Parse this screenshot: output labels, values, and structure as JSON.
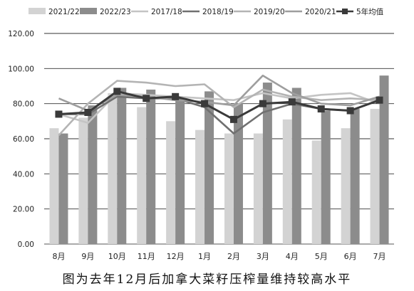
{
  "caption": "图为去年12月后加拿大菜籽压榨量维持较高水平",
  "chart_data": {
    "type": "bar",
    "categories": [
      "8月",
      "9月",
      "10月",
      "11月",
      "12月",
      "1月",
      "2月",
      "3月",
      "4月",
      "5月",
      "6月",
      "7月"
    ],
    "ylim": [
      0,
      120
    ],
    "yticks": [
      "0.00",
      "20.00",
      "40.00",
      "60.00",
      "80.00",
      "100.00",
      "120.00"
    ],
    "grid": true,
    "legend_position": "top",
    "series": [
      {
        "name": "2021/22",
        "kind": "bar",
        "color": "#d3d3d3",
        "values": [
          66,
          72,
          86,
          78,
          70,
          65,
          63,
          63,
          71,
          59,
          66,
          77
        ]
      },
      {
        "name": "2022/23",
        "kind": "bar",
        "color": "#8c8c8c",
        "values": [
          63,
          79,
          89,
          88,
          84,
          87,
          80,
          92,
          89,
          76,
          77,
          96
        ]
      },
      {
        "name": "2017/18",
        "kind": "line",
        "color": "#c4c4c4",
        "values": [
          74,
          69,
          86,
          85,
          84,
          83,
          82,
          86,
          83,
          85,
          86,
          80
        ]
      },
      {
        "name": "2018/19",
        "kind": "line",
        "color": "#707070",
        "values": [
          74,
          74,
          84,
          83,
          83,
          78,
          63,
          75,
          80,
          77,
          76,
          82
        ]
      },
      {
        "name": "2019/20",
        "kind": "line",
        "color": "#b4b4b4",
        "values": [
          62,
          80,
          93,
          92,
          90,
          91,
          78,
          88,
          84,
          82,
          83,
          82
        ]
      },
      {
        "name": "2020/21",
        "kind": "line",
        "color": "#9e9e9e",
        "values": [
          83,
          76,
          85,
          84,
          82,
          81,
          79,
          96,
          86,
          80,
          79,
          84
        ]
      },
      {
        "name": "5年均值",
        "kind": "line",
        "color": "#3a3a3a",
        "marker": "square",
        "values": [
          74,
          75,
          87,
          83,
          84,
          80,
          71,
          80,
          81,
          77,
          76,
          82
        ]
      }
    ]
  }
}
